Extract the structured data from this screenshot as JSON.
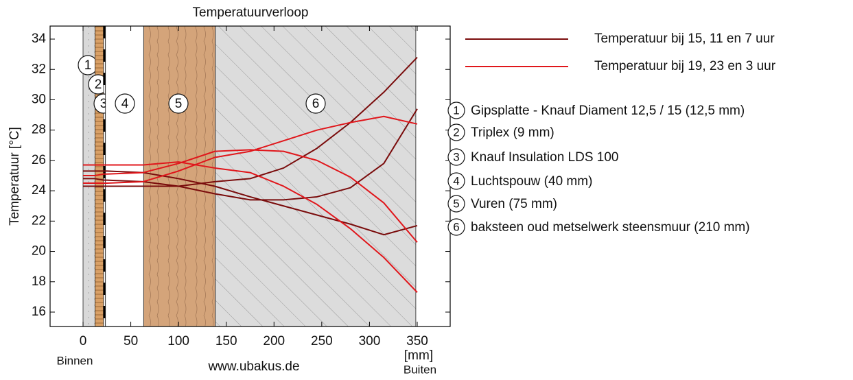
{
  "chart_data": {
    "type": "line",
    "title": "Temperatuurverloop",
    "y_label": "Temperatuur [°C]",
    "x_label": "[mm]",
    "inside_label": "Binnen",
    "outside_label": "Buiten",
    "source": "www.ubakus.de",
    "xlim": [
      -34.5,
      384.5
    ],
    "ylim": [
      15.05,
      34.86
    ],
    "xticks": [
      0,
      50,
      100,
      150,
      200,
      250,
      300,
      350
    ],
    "yticks": [
      16,
      18,
      20,
      22,
      24,
      26,
      28,
      30,
      32,
      34
    ],
    "x": [
      0,
      12.5,
      21.5,
      25,
      63,
      100,
      138,
      175,
      210,
      245,
      280,
      315,
      350
    ],
    "series": [
      {
        "name": "Temperatuur bij 15, 11 en 7 uur",
        "color": "#7a0c0c",
        "curves": [
          [
            24.3,
            24.3,
            24.3,
            24.3,
            24.3,
            24.3,
            24.6,
            24.8,
            25.5,
            26.8,
            28.5,
            30.5,
            32.8
          ],
          [
            24.8,
            24.8,
            24.7,
            24.7,
            24.6,
            24.3,
            23.8,
            23.4,
            23.4,
            23.6,
            24.2,
            25.8,
            29.4
          ],
          [
            25.3,
            25.3,
            25.3,
            25.3,
            25.2,
            24.8,
            24.3,
            23.6,
            23.0,
            22.4,
            21.8,
            21.1,
            21.7
          ]
        ]
      },
      {
        "name": "Temperatuur bij 19, 23 en 3 uur",
        "color": "#e0161b",
        "curves": [
          [
            24.5,
            24.5,
            24.5,
            24.5,
            24.6,
            25.3,
            26.2,
            26.6,
            27.3,
            28.0,
            28.5,
            28.9,
            28.4
          ],
          [
            25.0,
            25.0,
            25.1,
            25.1,
            25.2,
            25.8,
            26.6,
            26.7,
            26.6,
            26.0,
            24.9,
            23.2,
            20.6
          ],
          [
            25.7,
            25.7,
            25.7,
            25.7,
            25.7,
            25.9,
            25.5,
            25.2,
            24.3,
            23.1,
            21.5,
            19.6,
            17.3
          ]
        ]
      }
    ],
    "layers": [
      {
        "number": "1",
        "name": "Gipsplatte - Knauf Diament 12,5 / 15 (12,5 mm)",
        "start": 0,
        "end": 12.5
      },
      {
        "number": "2",
        "name": "Triplex (9 mm)",
        "start": 12.5,
        "end": 21.5
      },
      {
        "number": "3",
        "name": "Knauf Insulation LDS 100",
        "start": 21.5,
        "end": 23.5
      },
      {
        "number": "4",
        "name": "Luchtspouw (40 mm)",
        "start": 23.5,
        "end": 63.5
      },
      {
        "number": "5",
        "name": "Vuren (75 mm)",
        "start": 63.5,
        "end": 138.5
      },
      {
        "number": "6",
        "name": "baksteen oud metselwerk steensmuur (210 mm)",
        "start": 138.5,
        "end": 348.5
      }
    ]
  }
}
